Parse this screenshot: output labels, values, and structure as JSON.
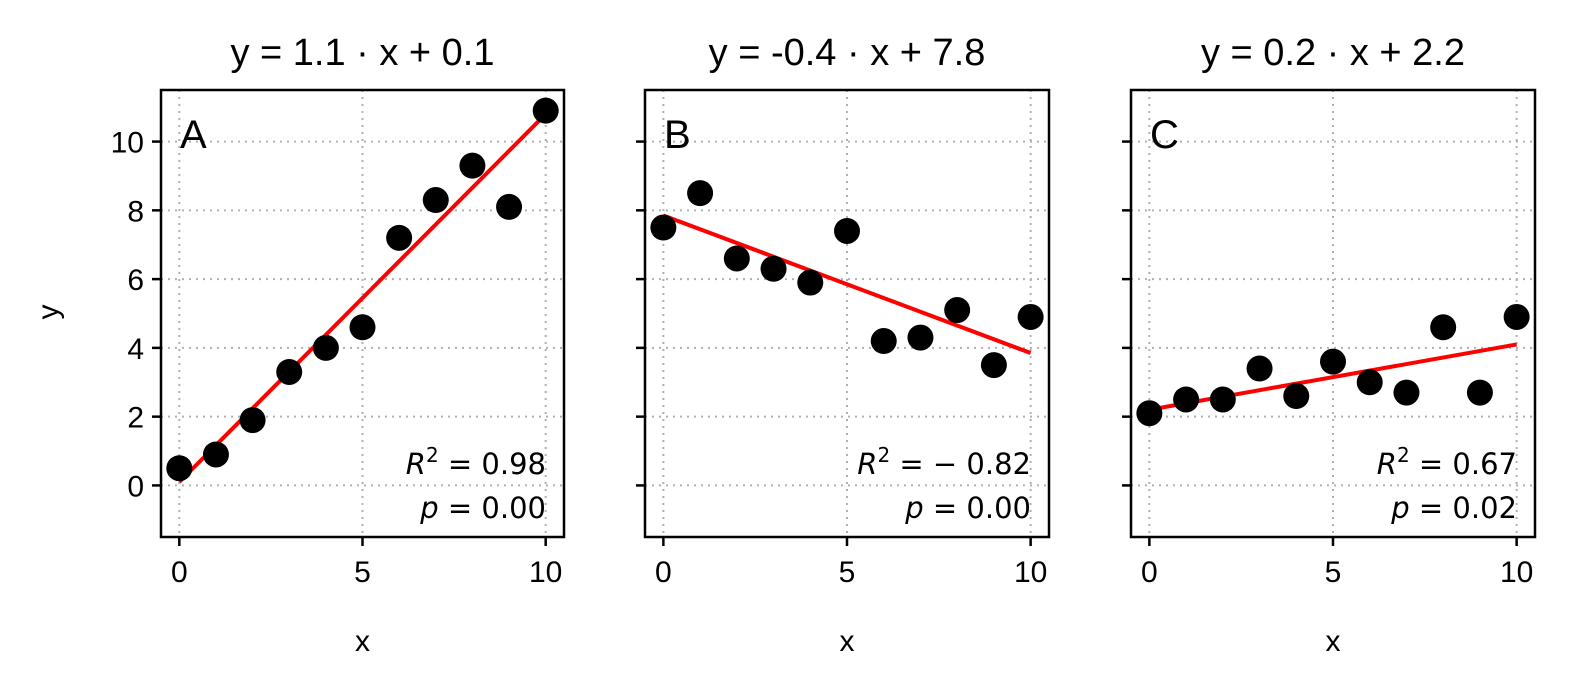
{
  "chart_data": [
    {
      "type": "scatter",
      "panel_label": "A",
      "title": "y = 1.1 · x + 0.1",
      "xlabel": "x",
      "ylabel": "y",
      "xlim": [
        -0.5,
        10.5
      ],
      "ylim": [
        -1.5,
        11.5
      ],
      "x_ticks": [
        0,
        5,
        10
      ],
      "y_ticks": [
        0,
        2,
        4,
        6,
        8,
        10
      ],
      "x_tick_labels": [
        "0",
        "5",
        "10"
      ],
      "y_tick_labels": [
        "0",
        "2",
        "4",
        "6",
        "8",
        "10"
      ],
      "grid": true,
      "x": [
        0,
        1,
        2,
        3,
        4,
        5,
        6,
        7,
        8,
        9,
        10
      ],
      "y": [
        0.5,
        0.9,
        1.9,
        3.3,
        4.0,
        4.6,
        7.2,
        8.3,
        9.3,
        8.1,
        10.9
      ],
      "fit": {
        "slope": 1.07,
        "intercept": 0.1,
        "color": "#ff0000"
      },
      "point_color": "#000000",
      "stats": {
        "r2_label": "R",
        "r2_sup": "2",
        "r2_value": " = 0.98",
        "p_label": "p",
        "p_value": " = 0.00"
      }
    },
    {
      "type": "scatter",
      "panel_label": "B",
      "title": "y = -0.4 · x + 7.8",
      "xlabel": "x",
      "ylabel": "",
      "xlim": [
        -0.5,
        10.5
      ],
      "ylim": [
        -1.5,
        11.5
      ],
      "x_ticks": [
        0,
        5,
        10
      ],
      "y_ticks": [
        0,
        2,
        4,
        6,
        8,
        10
      ],
      "x_tick_labels": [
        "0",
        "5",
        "10"
      ],
      "y_tick_labels": [],
      "grid": true,
      "x": [
        0,
        1,
        2,
        3,
        4,
        5,
        6,
        7,
        8,
        9,
        10
      ],
      "y": [
        7.5,
        8.5,
        6.6,
        6.3,
        5.9,
        7.4,
        4.2,
        4.3,
        5.1,
        3.5,
        4.9
      ],
      "fit": {
        "slope": -0.4,
        "intercept": 7.85,
        "color": "#ff0000"
      },
      "point_color": "#000000",
      "stats": {
        "r2_label": "R",
        "r2_sup": "2",
        "r2_value": " = − 0.82",
        "p_label": "p",
        "p_value": " = 0.00"
      }
    },
    {
      "type": "scatter",
      "panel_label": "C",
      "title": "y = 0.2 · x + 2.2",
      "xlabel": "x",
      "ylabel": "",
      "xlim": [
        -0.5,
        10.5
      ],
      "ylim": [
        -1.5,
        11.5
      ],
      "x_ticks": [
        0,
        5,
        10
      ],
      "y_ticks": [
        0,
        2,
        4,
        6,
        8,
        10
      ],
      "x_tick_labels": [
        "0",
        "5",
        "10"
      ],
      "y_tick_labels": [],
      "grid": true,
      "x": [
        0,
        1,
        2,
        3,
        4,
        5,
        6,
        7,
        8,
        9,
        10
      ],
      "y": [
        2.1,
        2.5,
        2.5,
        3.4,
        2.6,
        3.6,
        3.0,
        2.7,
        4.6,
        2.7,
        4.9
      ],
      "fit": {
        "slope": 0.19,
        "intercept": 2.2,
        "color": "#ff0000"
      },
      "point_color": "#000000",
      "stats": {
        "r2_label": "R",
        "r2_sup": "2",
        "r2_value": " = 0.67",
        "p_label": "p",
        "p_value": " = 0.02"
      }
    }
  ]
}
